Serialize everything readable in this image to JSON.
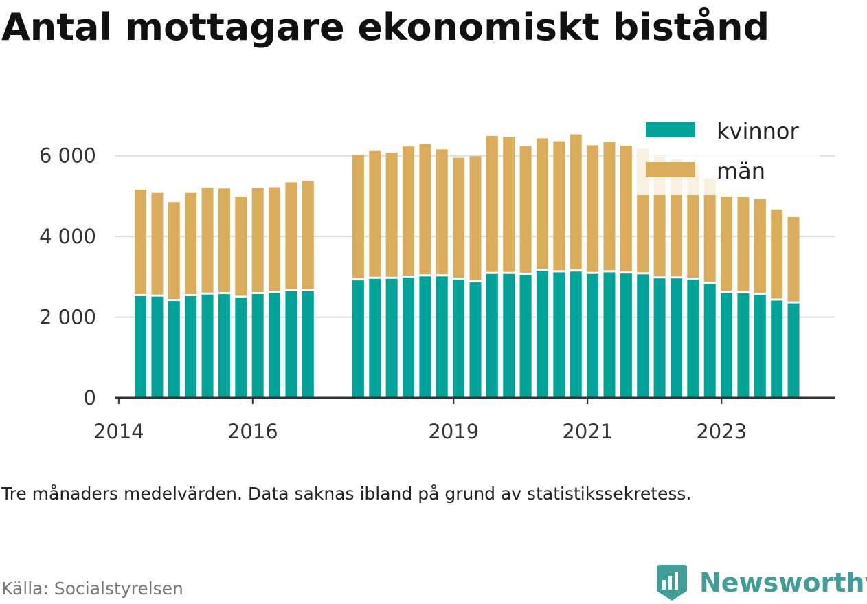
{
  "title": "Antal mottagare ekonomiskt bistånd",
  "subtitle": "Tre månaders medelvärden. Data saknas ibland på grund av statistikssekretess.",
  "source": "Källa: Socialstyrelsen",
  "brand": "Newsworthy",
  "colors": {
    "kvinnor": "#00a398",
    "man": "#d9ad5b",
    "grid": "#dddddd",
    "axis": "#333333",
    "brand": "#3f9e97"
  },
  "chart_data": {
    "type": "bar",
    "stacked": true,
    "ylim": [
      0,
      7000
    ],
    "yticks": [
      0,
      2000,
      4000,
      6000
    ],
    "ytick_labels": [
      "0",
      "2 000",
      "4 000",
      "6 000"
    ],
    "xtick_labels": [
      "2014",
      "2016",
      "2019",
      "2021",
      "2023"
    ],
    "xtick_years": [
      2014,
      2016,
      2019,
      2021,
      2023
    ],
    "legend_position": "top-right",
    "grid": true,
    "series": [
      {
        "name": "kvinnor",
        "color": "#00a398",
        "values": [
          2520,
          2510,
          2400,
          2520,
          2560,
          2570,
          2480,
          2570,
          2600,
          2640,
          2640,
          2910,
          2950,
          2950,
          2980,
          3010,
          3010,
          2930,
          2860,
          3070,
          3070,
          3050,
          3150,
          3110,
          3130,
          3070,
          3110,
          3080,
          3060,
          2960,
          2960,
          2930,
          2820,
          2600,
          2590,
          2550,
          2410,
          2340
        ]
      },
      {
        "name": "män",
        "color": "#d9ad5b",
        "values": [
          2640,
          2570,
          2450,
          2560,
          2650,
          2620,
          2510,
          2630,
          2620,
          2700,
          2730,
          3110,
          3170,
          3130,
          3250,
          3280,
          3150,
          3020,
          3130,
          3420,
          3390,
          3190,
          3280,
          3250,
          3400,
          3190,
          3230,
          3170,
          3110,
          3070,
          2950,
          2840,
          2610,
          2390,
          2390,
          2380,
          2260,
          2140
        ]
      }
    ],
    "periods": [
      {
        "year": 2014,
        "q": 2
      },
      {
        "year": 2014,
        "q": 3
      },
      {
        "year": 2014,
        "q": 4
      },
      {
        "year": 2015,
        "q": 1
      },
      {
        "year": 2015,
        "q": 2
      },
      {
        "year": 2015,
        "q": 3
      },
      {
        "year": 2015,
        "q": 4
      },
      {
        "year": 2016,
        "q": 1
      },
      {
        "year": 2016,
        "q": 2
      },
      {
        "year": 2016,
        "q": 3
      },
      {
        "year": 2016,
        "q": 4
      },
      {
        "year": 2017,
        "q": 3
      },
      {
        "year": 2017,
        "q": 4
      },
      {
        "year": 2018,
        "q": 1
      },
      {
        "year": 2018,
        "q": 2
      },
      {
        "year": 2018,
        "q": 3
      },
      {
        "year": 2018,
        "q": 4
      },
      {
        "year": 2019,
        "q": 1
      },
      {
        "year": 2019,
        "q": 2
      },
      {
        "year": 2019,
        "q": 3
      },
      {
        "year": 2019,
        "q": 4
      },
      {
        "year": 2020,
        "q": 1
      },
      {
        "year": 2020,
        "q": 2
      },
      {
        "year": 2020,
        "q": 3
      },
      {
        "year": 2020,
        "q": 4
      },
      {
        "year": 2021,
        "q": 1
      },
      {
        "year": 2021,
        "q": 2
      },
      {
        "year": 2021,
        "q": 3
      },
      {
        "year": 2021,
        "q": 4
      },
      {
        "year": 2022,
        "q": 1
      },
      {
        "year": 2022,
        "q": 2
      },
      {
        "year": 2022,
        "q": 3
      },
      {
        "year": 2022,
        "q": 4
      },
      {
        "year": 2023,
        "q": 1
      },
      {
        "year": 2023,
        "q": 2
      },
      {
        "year": 2023,
        "q": 3
      },
      {
        "year": 2023,
        "q": 4
      },
      {
        "year": 2024,
        "q": 1
      }
    ]
  }
}
